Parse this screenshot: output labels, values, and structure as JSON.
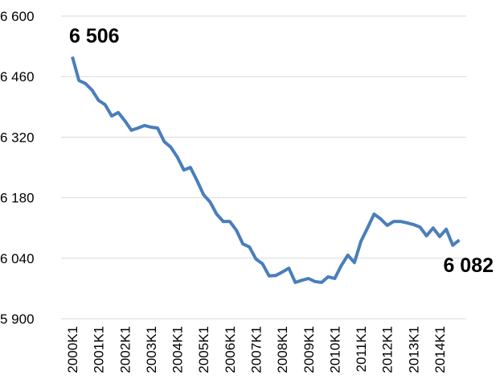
{
  "chart_data": {
    "type": "line",
    "categories": [
      "2000K1",
      null,
      null,
      null,
      "2001K1",
      null,
      null,
      null,
      "2002K1",
      null,
      null,
      null,
      "2003K1",
      null,
      null,
      null,
      "2004K1",
      null,
      null,
      null,
      "2005K1",
      null,
      null,
      null,
      "2006K1",
      null,
      null,
      null,
      "2007K1",
      null,
      null,
      null,
      "2008K1",
      null,
      null,
      null,
      "2009K1",
      null,
      null,
      null,
      "2010K1",
      null,
      null,
      null,
      "2011K1",
      null,
      null,
      null,
      "2012K1",
      null,
      null,
      null,
      "2013K1",
      null,
      null,
      null,
      "2014K1",
      null,
      null,
      null
    ],
    "values": [
      6506,
      6451,
      6444,
      6429,
      6405,
      6395,
      6369,
      6377,
      6358,
      6336,
      6341,
      6347,
      6343,
      6341,
      6310,
      6297,
      6274,
      6244,
      6250,
      6220,
      6187,
      6170,
      6142,
      6125,
      6125,
      6105,
      6073,
      6066,
      6038,
      6027,
      5999,
      6000,
      6008,
      6017,
      5984,
      5989,
      5993,
      5986,
      5984,
      5997,
      5993,
      6023,
      6047,
      6030,
      6079,
      6110,
      6142,
      6131,
      6116,
      6125,
      6125,
      6122,
      6118,
      6112,
      6092,
      6110,
      6090,
      6107,
      6070,
      6082
    ],
    "value_labels": [
      "6 506",
      null,
      null,
      null,
      null,
      null,
      null,
      null,
      null,
      null,
      null,
      null,
      null,
      null,
      null,
      null,
      null,
      null,
      null,
      null,
      null,
      null,
      null,
      null,
      null,
      null,
      null,
      null,
      null,
      null,
      null,
      null,
      null,
      null,
      null,
      null,
      null,
      null,
      null,
      null,
      null,
      null,
      null,
      null,
      null,
      null,
      null,
      null,
      null,
      null,
      null,
      null,
      null,
      null,
      null,
      null,
      null,
      null,
      null,
      "6 082"
    ],
    "color": "#4a7ebb",
    "ylim": [
      5900,
      6600
    ],
    "yticks": [
      {
        "value": 5900,
        "label": "5 900"
      },
      {
        "value": 6040,
        "label": "6 040"
      },
      {
        "value": 6180,
        "label": "6 180"
      },
      {
        "value": 6320,
        "label": "6 320"
      },
      {
        "value": 6460,
        "label": "6 460"
      },
      {
        "value": 6600,
        "label": "6 600"
      }
    ],
    "grid": true
  }
}
